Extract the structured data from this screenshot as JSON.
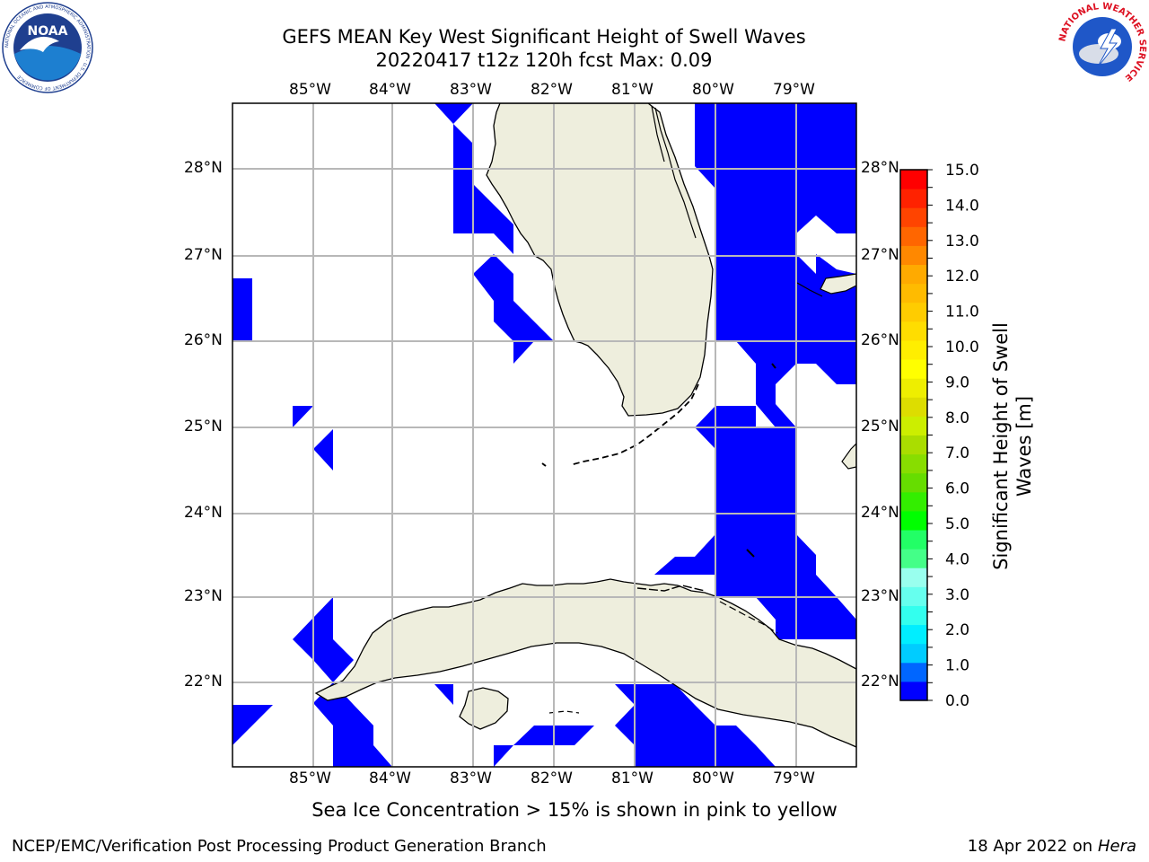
{
  "title": {
    "line1": "GEFS MEAN Key West Significant Height of Swell Waves",
    "line2": "20220417 t12z 120h fcst   Max: 0.09"
  },
  "map": {
    "lon_range": [
      -86.0,
      -78.25
    ],
    "lat_range": [
      21.0,
      28.75
    ],
    "lon_labels": [
      "85°W",
      "84°W",
      "83°W",
      "82°W",
      "81°W",
      "80°W",
      "79°W"
    ],
    "lat_labels": [
      "28°N",
      "27°N",
      "26°N",
      "25°N",
      "24°N",
      "23°N",
      "22°N"
    ],
    "land_color": "#eeeedd",
    "swell_fill_color": "#0000ff"
  },
  "colorbar": {
    "label": "Significant Height of Swell Waves [m]",
    "label_line1": "Significant Height of Swell",
    "label_line2": "Waves [m]",
    "ticks": [
      "0.0",
      "0.5",
      "1.0",
      "1.5",
      "2.0",
      "2.5",
      "3.0",
      "3.5",
      "4.0",
      "4.5",
      "5.0",
      "5.5",
      "6.0",
      "6.5",
      "7.0",
      "7.5",
      "8.0",
      "8.5",
      "9.0",
      "9.5",
      "10.0",
      "10.5",
      "11.0",
      "11.5",
      "12.0",
      "12.5",
      "13.0",
      "13.5",
      "14.0",
      "14.5",
      "15.0"
    ],
    "colors": [
      "#0000ff",
      "#0066ff",
      "#00ccff",
      "#00eeff",
      "#33ffee",
      "#66ffee",
      "#99ffee",
      "#44ff88",
      "#22ff66",
      "#00ff00",
      "#33ee00",
      "#66dd00",
      "#88dd00",
      "#aadd00",
      "#ccee00",
      "#dddd00",
      "#eeee00",
      "#ffff00",
      "#ffee00",
      "#ffdd00",
      "#ffcc00",
      "#ffbb00",
      "#ffaa00",
      "#ff8800",
      "#ff6600",
      "#ff4400",
      "#ff2200",
      "#ff0000"
    ]
  },
  "footer": {
    "ice_note": "Sea Ice Concentration > 15% is shown in pink to yellow",
    "credit": "NCEP/EMC/Verification Post Processing Product Generation Branch",
    "date": "18 Apr 2022 on ",
    "host": "Hera"
  },
  "logos": {
    "noaa": "NOAA",
    "noaa_ring": "NATIONAL OCEANIC AND ATMOSPHERIC ADMINISTRATION · U.S. DEPARTMENT OF COMMERCE",
    "nws_ring": "NATIONAL WEATHER SERVICE"
  }
}
